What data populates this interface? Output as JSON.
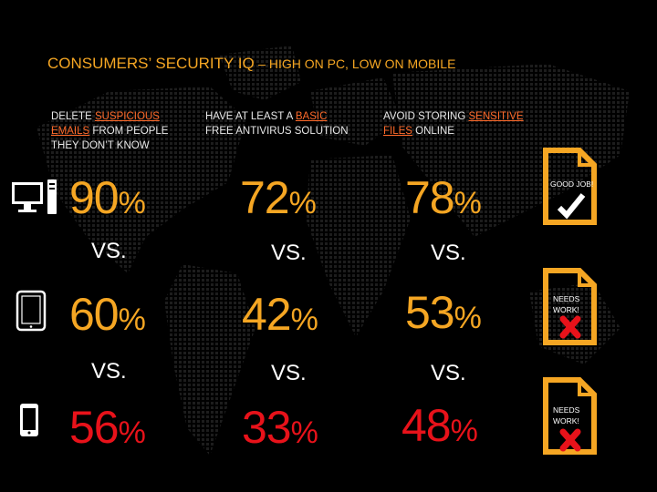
{
  "title": {
    "main": "CONSUMERS’ SECURITY IQ",
    "sub": "– HIGH ON PC, LOW ON MOBILE"
  },
  "columns": [
    {
      "parts": [
        "DELETE ",
        "SUSPICIOUS",
        "",
        "EMAILS",
        " FROM PEOPLE",
        "THEY DON’T KNOW"
      ]
    },
    {
      "parts": [
        "HAVE AT LEAST A ",
        "BASIC",
        "",
        "",
        "FREE ANTIVIRUS SOLUTION",
        ""
      ]
    },
    {
      "parts": [
        "AVOID STORING ",
        "SENSITIVE",
        "",
        "FILES",
        " ONLINE",
        ""
      ]
    }
  ],
  "devices": {
    "pc": {
      "icon": "desktop-computer-icon",
      "values": [
        "90",
        "72",
        "78"
      ]
    },
    "tablet": {
      "icon": "tablet-icon",
      "values": [
        "60",
        "42",
        "53"
      ]
    },
    "phone": {
      "icon": "smartphone-icon",
      "values": [
        "56",
        "33",
        "48"
      ]
    }
  },
  "percent_sign": "%",
  "vs_label": "VS.",
  "badges": [
    {
      "line1": "GOOD JOB!",
      "line2": "",
      "mark": "check-icon"
    },
    {
      "line1": "NEEDS",
      "line2": "WORK!",
      "mark": "cross-icon"
    },
    {
      "line1": "NEEDS",
      "line2": "WORK!",
      "mark": "cross-icon"
    }
  ],
  "colors": {
    "accent": "#f5a623",
    "pc_value": "#f5a623",
    "tablet_value": "#f5a623",
    "phone_value": "#e8121a",
    "highlight": "#ff6a2a",
    "cross": "#e8121a"
  }
}
